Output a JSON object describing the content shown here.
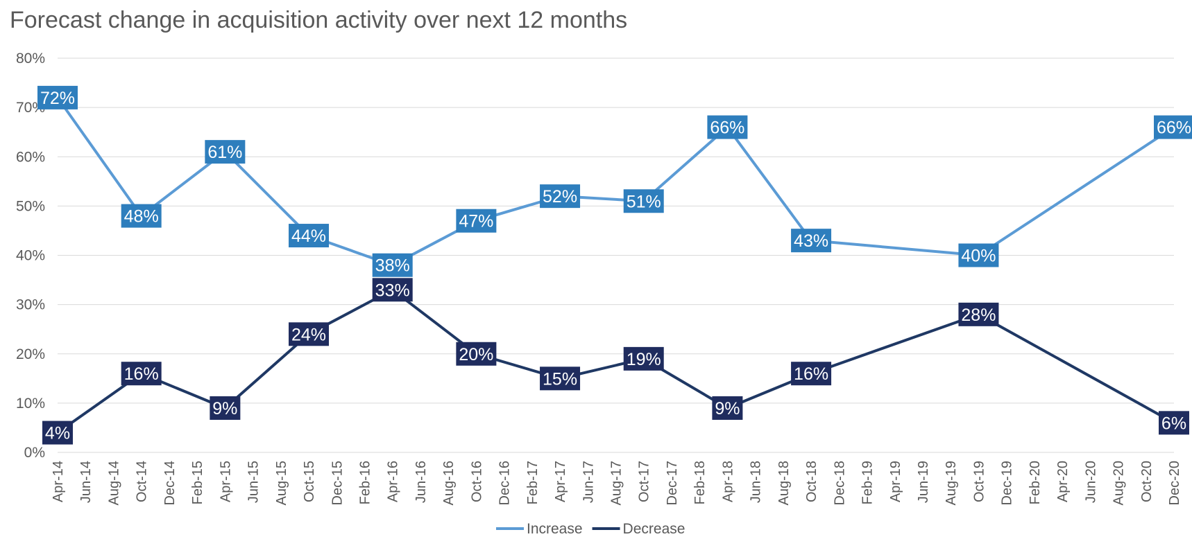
{
  "chart_data": {
    "type": "line",
    "title": "Forecast change in acquisition activity over next 12 months",
    "ylim": [
      0,
      80
    ],
    "yticks": [
      "0%",
      "10%",
      "20%",
      "30%",
      "40%",
      "50%",
      "60%",
      "70%",
      "80%"
    ],
    "x_tick_labels": [
      "Apr-14",
      "Jun-14",
      "Aug-14",
      "Oct-14",
      "Dec-14",
      "Feb-15",
      "Apr-15",
      "Jun-15",
      "Aug-15",
      "Oct-15",
      "Dec-15",
      "Feb-16",
      "Apr-16",
      "Jun-16",
      "Aug-16",
      "Oct-16",
      "Dec-16",
      "Feb-17",
      "Apr-17",
      "Jun-17",
      "Aug-17",
      "Oct-17",
      "Dec-17",
      "Feb-18",
      "Apr-18",
      "Jun-18",
      "Aug-18",
      "Oct-18",
      "Dec-18",
      "Feb-19",
      "Apr-19",
      "Jun-19",
      "Aug-19",
      "Oct-19",
      "Dec-19",
      "Feb-20",
      "Apr-20",
      "Jun-20",
      "Aug-20",
      "Oct-20",
      "Dec-20"
    ],
    "grid": true,
    "legend_position": "bottom",
    "series": [
      {
        "name": "Increase",
        "color": "#5b9bd5",
        "label_color": "#2e7ebd",
        "points": [
          {
            "x": "Apr-14",
            "y": 72,
            "label": "72%"
          },
          {
            "x": "Oct-14",
            "y": 48,
            "label": "48%"
          },
          {
            "x": "Apr-15",
            "y": 61,
            "label": "61%"
          },
          {
            "x": "Oct-15",
            "y": 44,
            "label": "44%"
          },
          {
            "x": "Apr-16",
            "y": 38,
            "label": "38%"
          },
          {
            "x": "Oct-16",
            "y": 47,
            "label": "47%"
          },
          {
            "x": "Apr-17",
            "y": 52,
            "label": "52%"
          },
          {
            "x": "Oct-17",
            "y": 51,
            "label": "51%"
          },
          {
            "x": "Apr-18",
            "y": 66,
            "label": "66%"
          },
          {
            "x": "Oct-18",
            "y": 43,
            "label": "43%"
          },
          {
            "x": "Oct-19",
            "y": 40,
            "label": "40%"
          },
          {
            "x": "Dec-20",
            "y": 66,
            "label": "66%"
          }
        ]
      },
      {
        "name": "Decrease",
        "color": "#1f3864",
        "label_color": "#1f2c5e",
        "points": [
          {
            "x": "Apr-14",
            "y": 4,
            "label": "4%"
          },
          {
            "x": "Oct-14",
            "y": 16,
            "label": "16%"
          },
          {
            "x": "Apr-15",
            "y": 9,
            "label": "9%"
          },
          {
            "x": "Oct-15",
            "y": 24,
            "label": "24%"
          },
          {
            "x": "Apr-16",
            "y": 33,
            "label": "33%"
          },
          {
            "x": "Oct-16",
            "y": 20,
            "label": "20%"
          },
          {
            "x": "Apr-17",
            "y": 15,
            "label": "15%"
          },
          {
            "x": "Oct-17",
            "y": 19,
            "label": "19%"
          },
          {
            "x": "Apr-18",
            "y": 9,
            "label": "9%"
          },
          {
            "x": "Oct-18",
            "y": 16,
            "label": "16%"
          },
          {
            "x": "Oct-19",
            "y": 28,
            "label": "28%"
          },
          {
            "x": "Dec-20",
            "y": 6,
            "label": "6%"
          }
        ]
      }
    ]
  }
}
